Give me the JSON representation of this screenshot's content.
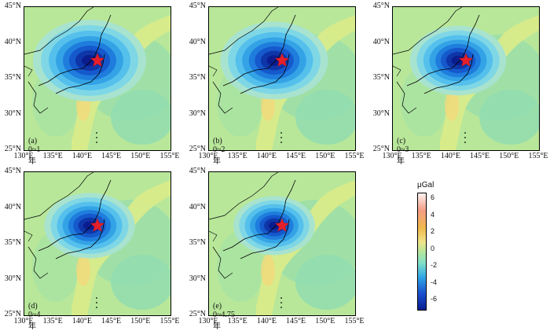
{
  "figure": {
    "lat_ticks": [
      "45°N",
      "40°N",
      "35°N",
      "30°N",
      "25°N"
    ],
    "lon_ticks": [
      "130°E",
      "135°E",
      "140°E",
      "145°E",
      "150°E",
      "155°E"
    ],
    "panels": [
      {
        "id": "a",
        "label": "(a) 0~1年",
        "min_intensity": 1.0
      },
      {
        "id": "b",
        "label": "(b) 0~2年",
        "min_intensity": 0.95
      },
      {
        "id": "c",
        "label": "(c) 0~3年",
        "min_intensity": 0.85
      },
      {
        "id": "d",
        "label": "(d) 0~4年",
        "min_intensity": 0.8
      },
      {
        "id": "e",
        "label": "(e) 0~4.75年",
        "min_intensity": 0.72
      }
    ],
    "epicenter_marker": "red-star"
  },
  "colorbar": {
    "unit": "μGal",
    "ticks": [
      "6",
      "4",
      "2",
      "0",
      "-2",
      "-4",
      "-6"
    ],
    "range": [
      -7,
      7
    ],
    "colors": {
      "low": "#0a1d8f",
      "mid_low": "#2fa6e6",
      "zero": "#b8e79a",
      "mid_high": "#f5c77a",
      "high": "#fff2ee"
    }
  }
}
